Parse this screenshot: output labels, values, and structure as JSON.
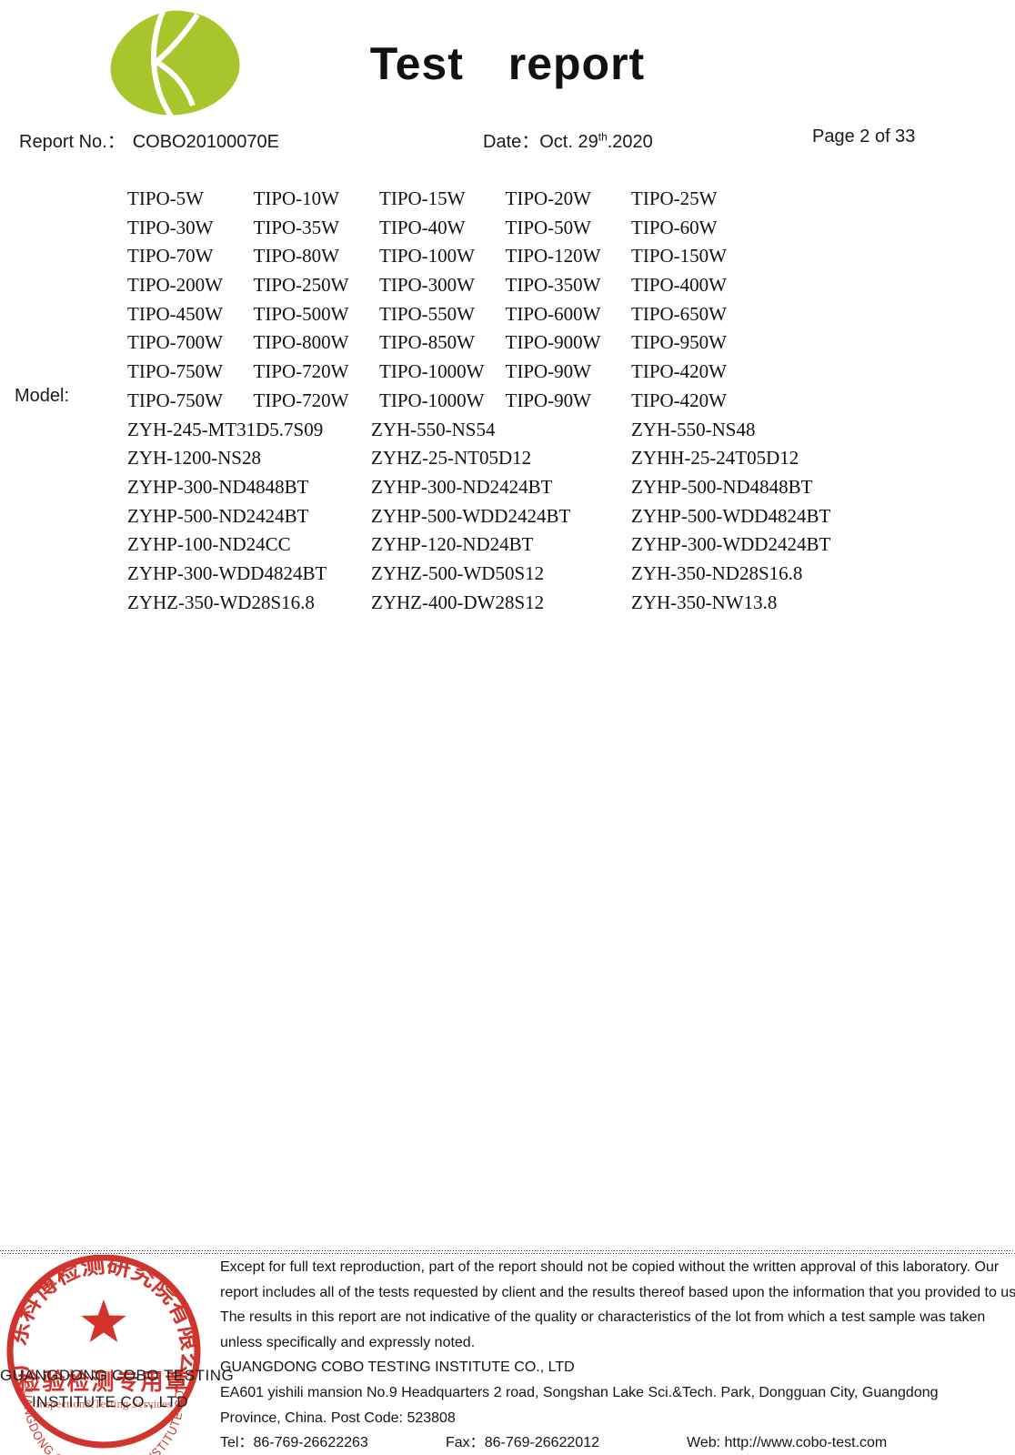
{
  "colors": {
    "logo_green": "#a8c52c",
    "stamp_red": "#d0342c",
    "text_black": "#1a1a1a"
  },
  "header": {
    "logo_icon": "cobo-leaf-logo",
    "title": "Test report",
    "report_no_label": "Report No.：",
    "report_no": "COBO20100070E",
    "date_label": "Date：",
    "date_day": "Oct. 29",
    "date_superscript": "th",
    "date_year": ".2020",
    "page_info": "Page 2 of 33"
  },
  "model_section": {
    "label": "Model:",
    "tipo_rows": [
      [
        "TIPO-5W",
        "TIPO-10W",
        "TIPO-15W",
        "TIPO-20W",
        "TIPO-25W"
      ],
      [
        "TIPO-30W",
        "TIPO-35W",
        "TIPO-40W",
        "TIPO-50W",
        "TIPO-60W"
      ],
      [
        "TIPO-70W",
        "TIPO-80W",
        "TIPO-100W",
        "TIPO-120W",
        "TIPO-150W"
      ],
      [
        "TIPO-200W",
        "TIPO-250W",
        "TIPO-300W",
        "TIPO-350W",
        "TIPO-400W"
      ],
      [
        "TIPO-450W",
        "TIPO-500W",
        "TIPO-550W",
        "TIPO-600W",
        "TIPO-650W"
      ],
      [
        "TIPO-700W",
        "TIPO-800W",
        "TIPO-850W",
        "TIPO-900W",
        "TIPO-950W"
      ],
      [
        "TIPO-750W",
        "TIPO-720W",
        "TIPO-1000W",
        "TIPO-90W",
        "TIPO-420W"
      ],
      [
        "TIPO-750W",
        "TIPO-720W",
        "TIPO-1000W",
        "TIPO-90W",
        "TIPO-420W"
      ]
    ],
    "zyh_rows": [
      [
        "ZYH-245-MT31D5.7S09",
        "ZYH-550-NS54",
        "ZYH-550-NS48"
      ],
      [
        "ZYH-1200-NS28",
        "ZYHZ-25-NT05D12",
        "ZYHH-25-24T05D12"
      ],
      [
        "ZYHP-300-ND4848BT",
        "ZYHP-300-ND2424BT",
        "ZYHP-500-ND4848BT"
      ],
      [
        "ZYHP-500-ND2424BT",
        "ZYHP-500-WDD2424BT",
        "ZYHP-500-WDD4824BT"
      ],
      [
        "ZYHP-100-ND24CC",
        "ZYHP-120-ND24BT",
        "ZYHP-300-WDD2424BT"
      ],
      [
        "ZYHP-300-WDD4824BT",
        "ZYHZ-500-WD50S12",
        "ZYH-350-ND28S16.8"
      ],
      [
        "ZYHZ-350-WD28S16.8",
        "ZYHZ-400-DW28S12",
        "ZYH-350-NW13.8"
      ]
    ]
  },
  "footer": {
    "disclaimer_lines": [
      "Except for full text reproduction, part of the report should not be copied without the written approval of this laboratory. Our",
      "report includes all of the tests requested by client and the results thereof based upon the information that you provided to us.",
      "The results in this report are not indicative of the quality or characteristics of the lot from which a test sample was taken",
      "unless specifically and expressly noted."
    ],
    "company_name": "GUANGDONG COBO TESTING INSTITUTE CO., LTD",
    "address_line1": "EA601 yishili mansion No.9 Headquarters 2 road, Songshan Lake Sci.&Tech. Park, Dongguan City, Guangdong",
    "address_line2": "Province, China. Post Code: 523808",
    "tel_label": "Tel：",
    "tel": "86-769-26622263",
    "fax_label": "Fax：",
    "fax": "86-769-26622012",
    "web_label": "Web: ",
    "web": "http://www.cobo-test.com",
    "stamp": {
      "icon": "red-company-seal",
      "ring_text_cn": "广东科博检测研究院有限公司",
      "seal_text_cn": "检验检测专用章",
      "services_text": "Inspection&Testing Services",
      "ring_text_en": "GUANGDONG COBO TESTING INSTITUTE CO.,LTD",
      "overlay_line1": "GUANGDONG COBO TESTING",
      "overlay_line2": "INSTITUTE CO., LTD"
    }
  }
}
